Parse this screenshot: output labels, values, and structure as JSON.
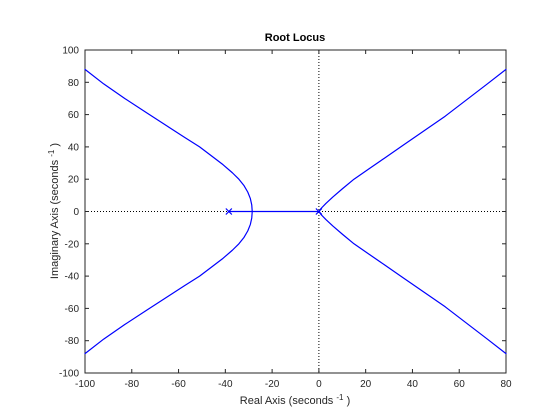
{
  "chart_data": {
    "type": "line",
    "title": "Root Locus",
    "xlabel": {
      "prefix": "Real Axis (seconds",
      "sup": "-1",
      "suffix": ")"
    },
    "ylabel": {
      "prefix": "Imaginary Axis (seconds",
      "sup": "-1",
      "suffix": ")"
    },
    "xlim": [
      -100,
      80
    ],
    "ylim": [
      -100,
      100
    ],
    "xticks": [
      -100,
      -80,
      -60,
      -40,
      -20,
      0,
      20,
      40,
      60,
      80
    ],
    "yticks": [
      -100,
      -80,
      -60,
      -40,
      -20,
      0,
      20,
      40,
      60,
      80,
      100
    ],
    "grid": false,
    "reference_lines": {
      "zero_real_axis": true,
      "zero_imaginary_axis": true
    },
    "poles": [
      {
        "x": -38.5,
        "y": 0
      },
      {
        "x": 0,
        "y": 0
      }
    ],
    "colors": {
      "locus": "#0000ff",
      "axis": "#262626",
      "reference": "#000000"
    },
    "series": [
      {
        "x": [
          -28.5,
          -28.7,
          -29.3,
          -30.4,
          -32.0,
          -34.2,
          -37.0,
          -41.0,
          -45.5,
          -51.0,
          -57.5,
          -65.0,
          -73.5,
          -83.0,
          -92.0,
          -100.0
        ],
        "y": [
          0,
          4,
          8,
          12,
          16,
          20,
          24,
          29,
          34,
          40,
          46,
          53,
          61,
          70,
          79,
          88
        ]
      },
      {
        "x": [
          -28.5,
          -28.7,
          -29.3,
          -30.4,
          -32.0,
          -34.2,
          -37.0,
          -41.0,
          -45.5,
          -51.0,
          -57.5,
          -65.0,
          -73.5,
          -83.0,
          -92.0,
          -100.0
        ],
        "y": [
          0,
          -4,
          -8,
          -12,
          -16,
          -20,
          -24,
          -29,
          -34,
          -40,
          -46,
          -53,
          -61,
          -70,
          -79,
          -88
        ]
      },
      {
        "x": [
          -38.5,
          -35.0,
          -32.0,
          -29.7,
          -28.5
        ],
        "y": [
          0,
          0,
          0,
          0,
          0
        ]
      },
      {
        "x": [
          0,
          -28.5
        ],
        "y": [
          0,
          0
        ]
      },
      {
        "x": [
          0,
          1,
          3,
          6,
          10,
          15,
          21,
          28,
          36,
          45,
          54,
          63,
          72,
          80
        ],
        "y": [
          0,
          2,
          5,
          9,
          14,
          20,
          26,
          33,
          41,
          50,
          59,
          69,
          79,
          88
        ]
      },
      {
        "x": [
          0,
          1,
          3,
          6,
          10,
          15,
          21,
          28,
          36,
          45,
          54,
          63,
          72,
          80
        ],
        "y": [
          0,
          -2,
          -5,
          -9,
          -14,
          -20,
          -26,
          -33,
          -41,
          -50,
          -59,
          -69,
          -79,
          -88
        ]
      }
    ]
  }
}
